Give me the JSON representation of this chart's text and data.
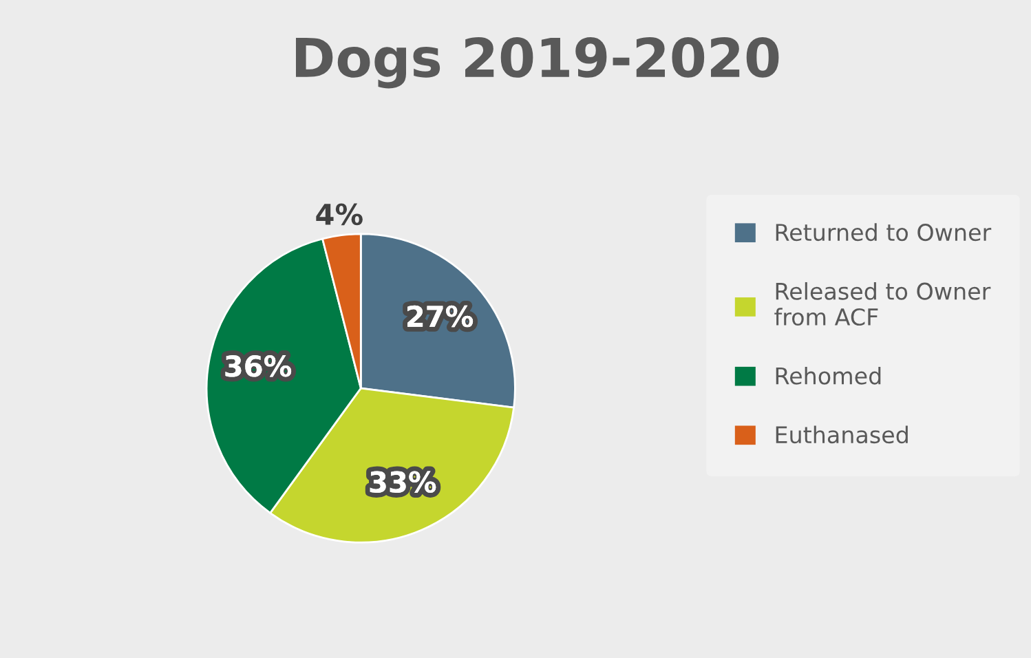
{
  "chart_data": {
    "type": "pie",
    "title": "Dogs 2019-2020",
    "categories": [
      "Returned to Owner",
      "Released to Owner\nfrom ACF",
      "Rehomed",
      "Euthanased"
    ],
    "values": [
      27,
      33,
      36,
      4
    ],
    "colors": [
      "#4e7189",
      "#c5d62e",
      "#007a45",
      "#d9601a"
    ],
    "value_labels": [
      "27%",
      "33%",
      "36%",
      "4%"
    ],
    "legend": "right"
  }
}
